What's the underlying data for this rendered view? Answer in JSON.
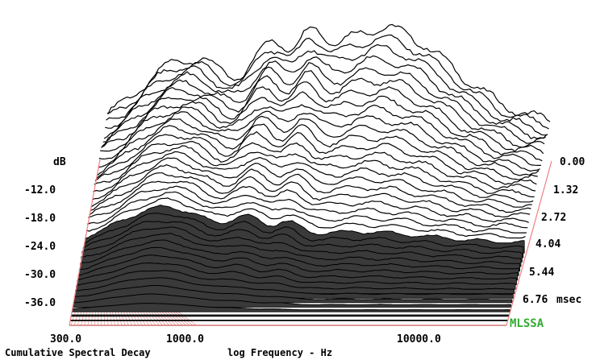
{
  "chart_data": {
    "type": "waterfall",
    "title": "Cumulative Spectral Decay",
    "xlabel": "log Frequency - Hz",
    "ylabel": "dB",
    "zlabel": "msec",
    "x_scale": "log",
    "xlim": [
      300,
      20000
    ],
    "ylim": [
      -42,
      0
    ],
    "zlim": [
      0,
      7.5
    ],
    "x_ticks": [
      "300.0",
      "1000.0",
      "10000.0"
    ],
    "y_ticks": [
      "-12.0",
      "-18.0",
      "-24.0",
      "-30.0",
      "-36.0"
    ],
    "z_ticks": [
      "0.00",
      "1.32",
      "2.72",
      "4.04",
      "5.44",
      "6.76"
    ],
    "z_unit_suffix": "msec",
    "slices": 40,
    "brand": "MLSSA",
    "colors": {
      "axes": "#f08080",
      "brand": "#33aa33",
      "trace": "#000000"
    }
  }
}
